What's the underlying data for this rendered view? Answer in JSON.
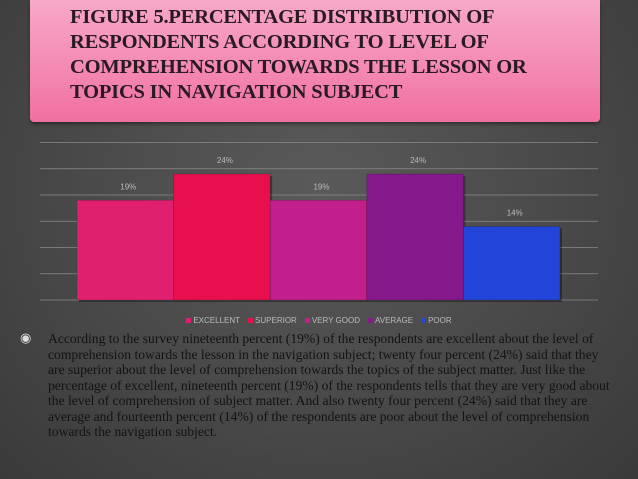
{
  "chart_data": {
    "type": "bar",
    "title": "FIGURE 5.PERCENTAGE DISTRIBUTION OF RESPONDENTS ACCORDING TO LEVEL OF COMPREHENSION TOWARDS THE LESSON OR TOPICS IN NAVIGATION SUBJECT",
    "categories": [
      "EXCELLENT",
      "SUPERIOR",
      "VERY GOOD",
      "AVERAGE",
      "POOR"
    ],
    "values": [
      19,
      24,
      19,
      24,
      14
    ],
    "value_labels": [
      "19%",
      "24%",
      "19%",
      "24%",
      "14%"
    ],
    "colors": [
      "#e0206e",
      "#e8104c",
      "#c21e8c",
      "#85188a",
      "#2244d8"
    ],
    "ylim": [
      0,
      30
    ],
    "yticks": [
      0,
      5,
      10,
      15,
      20,
      25,
      30
    ],
    "grid": true,
    "legend": "bottom"
  },
  "paragraph": "According to the survey nineteenth percent (19%) of the respondents are excellent about the level of comprehension towards the lesson in the navigation subject; twenty four percent (24%) said that they are superior about the level of comprehension towards the topics of the subject matter. Just like the percentage of excellent, nineteenth percent (19%) of the respondents tells that they are very good about the level of comprehension of subject matter. And also twenty four percent (24%) said that they are average and fourteenth percent (14%) of the respondents are poor about the level of comprehension towards the navigation subject."
}
